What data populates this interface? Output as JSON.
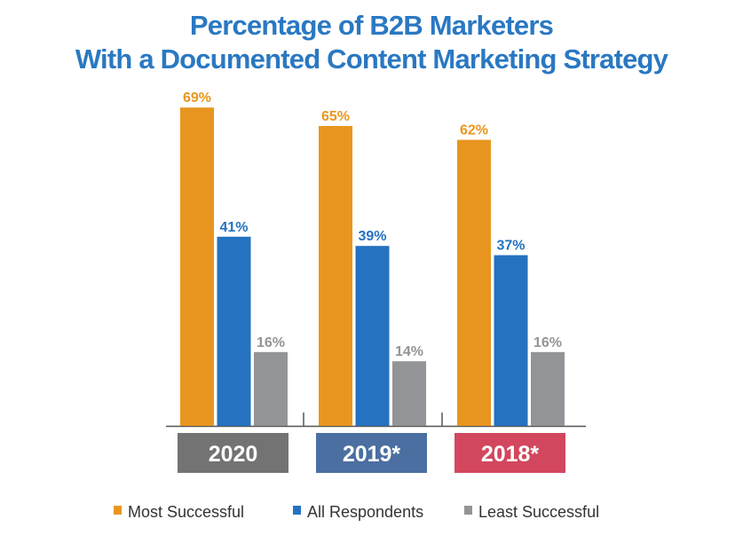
{
  "chart_data": {
    "type": "bar",
    "title": [
      "Percentage of B2B Marketers",
      "With a Documented Content Marketing Strategy"
    ],
    "categories": [
      "2020",
      "2019*",
      "2018*"
    ],
    "category_colors": [
      "#737373",
      "#4a6fa0",
      "#d2475e"
    ],
    "series": [
      {
        "name": "Most Successful",
        "color": "#e8961f",
        "values": [
          69,
          65,
          62
        ],
        "labels": [
          "69%",
          "65%",
          "62%"
        ]
      },
      {
        "name": "All Respondents",
        "color": "#2472c0",
        "values": [
          41,
          39,
          37
        ],
        "labels": [
          "41%",
          "39%",
          "37%"
        ]
      },
      {
        "name": "Least Successful",
        "color": "#939497",
        "values": [
          16,
          14,
          16
        ],
        "labels": [
          "16%",
          "14%",
          "16%"
        ]
      }
    ],
    "ylim": [
      0,
      70
    ],
    "grid": false,
    "legend": "bottom",
    "xlabel": "",
    "ylabel": ""
  }
}
